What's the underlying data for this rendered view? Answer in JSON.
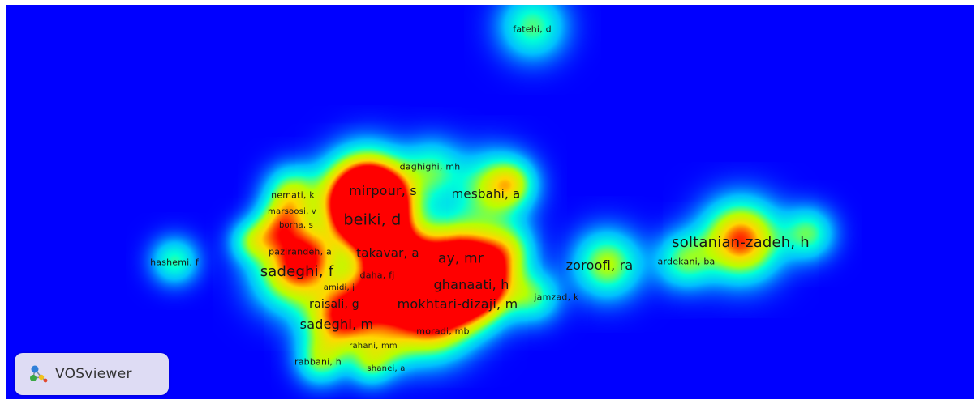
{
  "viewer": {
    "brand": "VOSviewer",
    "brand_icon": "vosviewer-logo-icon",
    "background_color": "#0000ff",
    "density_colors": [
      "#0000ff",
      "#00c0ff",
      "#00ffd8",
      "#b8ff00",
      "#ffd800",
      "#ff0000"
    ]
  },
  "authors": [
    {
      "id": "fatehi",
      "label": "fatehi, d",
      "weight": 0.55
    },
    {
      "id": "daghighi",
      "label": "daghighi, mh",
      "weight": 0.55
    },
    {
      "id": "nemati",
      "label": "nemati, k",
      "weight": 0.45
    },
    {
      "id": "mirpour",
      "label": "mirpour, s",
      "weight": 0.85
    },
    {
      "id": "mesbahi",
      "label": "mesbahi, a",
      "weight": 0.8
    },
    {
      "id": "marsoosi",
      "label": "marsoosi, v",
      "weight": 0.4
    },
    {
      "id": "beiki",
      "label": "beiki, d",
      "weight": 1.0
    },
    {
      "id": "borha",
      "label": "borha, s",
      "weight": 0.4
    },
    {
      "id": "soltanian",
      "label": "soltanian-zadeh, h",
      "weight": 0.9
    },
    {
      "id": "pazirandeh",
      "label": "pazirandeh, a",
      "weight": 0.5
    },
    {
      "id": "takavar",
      "label": "takavar, a",
      "weight": 0.85
    },
    {
      "id": "ay",
      "label": "ay, mr",
      "weight": 0.95
    },
    {
      "id": "hashemi",
      "label": "hashemi, f",
      "weight": 0.5
    },
    {
      "id": "zoroofi",
      "label": "zoroofi, ra",
      "weight": 0.75
    },
    {
      "id": "ardekani",
      "label": "ardekani, ba",
      "weight": 0.5
    },
    {
      "id": "sadeghi_f",
      "label": "sadeghi, f",
      "weight": 0.9
    },
    {
      "id": "daha",
      "label": "daha, fj",
      "weight": 0.55
    },
    {
      "id": "ghanaati",
      "label": "ghanaati, h",
      "weight": 0.85
    },
    {
      "id": "amidi",
      "label": "amidi, j",
      "weight": 0.4
    },
    {
      "id": "jamzad",
      "label": "jamzad, k",
      "weight": 0.45
    },
    {
      "id": "raisali",
      "label": "raisali, g",
      "weight": 0.7
    },
    {
      "id": "mokhtari",
      "label": "mokhtari-dizaji, m",
      "weight": 0.85
    },
    {
      "id": "sadeghi_m",
      "label": "sadeghi, m",
      "weight": 0.85
    },
    {
      "id": "moradi",
      "label": "moradi, mb",
      "weight": 0.45
    },
    {
      "id": "rahani",
      "label": "rahani, mm",
      "weight": 0.4
    },
    {
      "id": "rabbani",
      "label": "rabbani, h",
      "weight": 0.45
    },
    {
      "id": "shanei",
      "label": "shanei, a",
      "weight": 0.4
    }
  ]
}
